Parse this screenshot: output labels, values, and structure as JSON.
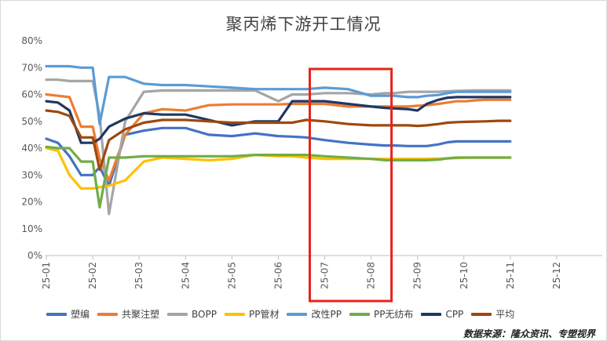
{
  "chart_data": {
    "type": "line",
    "title": "聚丙烯下游开工情况",
    "xlabel": "",
    "ylabel": "",
    "x_ticks": [
      "25-01",
      "25-02",
      "25-03",
      "25-04",
      "25-05",
      "25-06",
      "25-07",
      "25-08",
      "25-09",
      "25-10",
      "25-11",
      "25-12"
    ],
    "y_ticks": [
      "0%",
      "10%",
      "20%",
      "30%",
      "40%",
      "50%",
      "60%",
      "70%",
      "80%"
    ],
    "ylim": [
      0,
      80
    ],
    "grid": "horizontal-none",
    "legend_position": "bottom",
    "highlight_box": {
      "from": "25-07",
      "to": "25-08",
      "color": "#e8231c"
    },
    "series": [
      {
        "name": "塑编",
        "color": "#4472c4",
        "x": [
          0,
          0.25,
          0.5,
          0.75,
          1,
          1.15,
          1.35,
          1.7,
          2.1,
          2.5,
          3,
          3.5,
          4,
          4.5,
          5,
          5.3,
          5.6,
          6,
          6.5,
          7,
          7.3,
          7.5,
          7.8,
          8,
          8.2,
          8.45,
          8.65,
          8.85,
          9.05,
          9.25,
          9.45,
          9.75,
          10
        ],
        "y": [
          43.5,
          42,
          37,
          30,
          30,
          33,
          26,
          45,
          46.5,
          47.5,
          47.5,
          45,
          44.5,
          45.5,
          44.5,
          44.3,
          44,
          43,
          42,
          41.3,
          41,
          41,
          40.8,
          40.8,
          40.8,
          41.4,
          42.2,
          42.5,
          42.5,
          42.5,
          42.5,
          42.5,
          42.5
        ]
      },
      {
        "name": "共聚注塑",
        "color": "#ed7d31",
        "x": [
          0,
          0.25,
          0.5,
          0.75,
          1,
          1.15,
          1.35,
          1.7,
          2.1,
          2.5,
          3,
          3.5,
          4,
          4.5,
          5,
          5.3,
          5.6,
          6,
          6.5,
          7,
          7.3,
          7.5,
          7.8,
          8,
          8.2,
          8.45,
          8.65,
          8.85,
          9.05,
          9.25,
          9.45,
          9.75,
          10
        ],
        "y": [
          60,
          59.5,
          59,
          48,
          48,
          36,
          28,
          45,
          53,
          54.5,
          54,
          56,
          56.3,
          56.3,
          56.3,
          56.5,
          56.5,
          56.5,
          55.5,
          55.5,
          55.5,
          55.5,
          55.5,
          55.8,
          56,
          56.5,
          57,
          57.5,
          57.5,
          57.8,
          58,
          58,
          58
        ]
      },
      {
        "name": "BOPP",
        "color": "#a5a5a5",
        "x": [
          0,
          0.25,
          0.5,
          0.75,
          1,
          1.15,
          1.35,
          1.7,
          2.1,
          2.5,
          3,
          3.5,
          4,
          4.5,
          5,
          5.3,
          5.6,
          6,
          6.5,
          7,
          7.3,
          7.5,
          7.8,
          8,
          8.2,
          8.45,
          8.65,
          8.85,
          9.05,
          9.25,
          9.45,
          9.75,
          10
        ],
        "y": [
          65.5,
          65.5,
          65,
          65,
          65,
          52,
          15.5,
          50,
          61,
          61.5,
          61.5,
          61.5,
          61.5,
          61.5,
          57.5,
          60,
          60,
          60.5,
          60.5,
          60,
          60.5,
          60.5,
          61,
          61,
          61,
          61,
          61.2,
          61.3,
          61.4,
          61.5,
          61.5,
          61.5,
          61.5
        ]
      },
      {
        "name": "PP管材",
        "color": "#ffc000",
        "x": [
          0,
          0.25,
          0.5,
          0.75,
          1,
          1.15,
          1.35,
          1.7,
          2.1,
          2.5,
          3,
          3.5,
          4,
          4.5,
          5,
          5.3,
          5.6,
          6,
          6.5,
          7,
          7.3,
          7.5,
          7.8,
          8,
          8.2,
          8.45,
          8.65,
          8.85,
          9.05,
          9.25,
          9.45,
          9.75,
          10
        ],
        "y": [
          40,
          39,
          30,
          25,
          25,
          25.5,
          26,
          28,
          35,
          36.5,
          36,
          35.5,
          36,
          37.5,
          37,
          37,
          36.5,
          36,
          36,
          36,
          36,
          36,
          36,
          36,
          36,
          36.1,
          36.2,
          36.3,
          36.4,
          36.5,
          36.5,
          36.5,
          36.5
        ]
      },
      {
        "name": "改性PP",
        "color": "#5b9bd5",
        "x": [
          0,
          0.25,
          0.5,
          0.75,
          1,
          1.15,
          1.35,
          1.7,
          2.1,
          2.5,
          3,
          3.5,
          4,
          4.5,
          5,
          5.3,
          5.6,
          6,
          6.5,
          7,
          7.3,
          7.5,
          7.8,
          8,
          8.2,
          8.45,
          8.65,
          8.85,
          9.05,
          9.25,
          9.45,
          9.75,
          10
        ],
        "y": [
          70.5,
          70.5,
          70.5,
          70,
          70,
          49,
          66.5,
          66.5,
          64,
          63.5,
          63.5,
          63,
          62.5,
          62,
          62,
          62,
          62,
          62.5,
          62,
          59.5,
          59.5,
          59.5,
          59,
          59,
          59.5,
          59.8,
          60.5,
          61,
          61,
          61,
          61,
          61,
          61
        ]
      },
      {
        "name": "PP无纺布",
        "color": "#70ad47",
        "x": [
          0,
          0.25,
          0.5,
          0.75,
          1,
          1.15,
          1.35,
          1.7,
          2.1,
          2.5,
          3,
          3.5,
          4,
          4.5,
          5,
          5.3,
          5.6,
          6,
          6.5,
          7,
          7.3,
          7.5,
          7.8,
          8,
          8.2,
          8.45,
          8.65,
          8.85,
          9.05,
          9.25,
          9.45,
          9.75,
          10
        ],
        "y": [
          40.5,
          40,
          40,
          35,
          35,
          18,
          36.5,
          36.5,
          37,
          37,
          37,
          37,
          37,
          37.5,
          37.5,
          37.5,
          37.5,
          37,
          36.5,
          36,
          35.5,
          35.5,
          35.5,
          35.5,
          35.5,
          35.7,
          36.2,
          36.5,
          36.5,
          36.5,
          36.5,
          36.5,
          36.5
        ]
      },
      {
        "name": "CPP",
        "color": "#1f3864",
        "x": [
          0,
          0.25,
          0.5,
          0.75,
          1,
          1.15,
          1.35,
          1.7,
          2.1,
          2.5,
          3,
          3.5,
          4,
          4.5,
          5,
          5.3,
          5.6,
          6,
          6.5,
          7,
          7.3,
          7.5,
          7.8,
          8,
          8.2,
          8.45,
          8.65,
          8.85,
          9.05,
          9.25,
          9.45,
          9.75,
          10
        ],
        "y": [
          57.5,
          57,
          54,
          42,
          42,
          43.5,
          48,
          51,
          53,
          52.5,
          52.5,
          50.5,
          48.5,
          50,
          50,
          57.5,
          57.5,
          57.5,
          56.5,
          55.5,
          55,
          54.8,
          54.5,
          54,
          56.5,
          58,
          58.8,
          59,
          59,
          59,
          59,
          59,
          59
        ]
      },
      {
        "name": "平均",
        "color": "#9e480e",
        "x": [
          0,
          0.25,
          0.5,
          0.75,
          1,
          1.15,
          1.35,
          1.7,
          2.1,
          2.5,
          3,
          3.5,
          4,
          4.5,
          5,
          5.3,
          5.6,
          6,
          6.5,
          7,
          7.3,
          7.5,
          7.8,
          8,
          8.2,
          8.45,
          8.65,
          8.85,
          9.05,
          9.25,
          9.45,
          9.75,
          10
        ],
        "y": [
          54,
          53.5,
          52,
          44,
          44,
          32,
          43,
          47,
          49.5,
          50.5,
          50.5,
          50,
          49.5,
          49.5,
          49.5,
          49.5,
          50.5,
          50,
          49,
          48.5,
          48.5,
          48.5,
          48.5,
          48.3,
          48.5,
          49,
          49.5,
          49.7,
          49.8,
          49.9,
          50,
          50.2,
          50.2
        ]
      }
    ]
  },
  "footer": {
    "source": "数据来源：隆众资讯、专塑视界"
  }
}
